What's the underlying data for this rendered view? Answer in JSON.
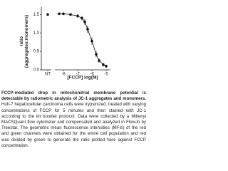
{
  "chart_data": {
    "type": "line",
    "ylabel": "ratio\n(aggregates:monomers)",
    "xlabel": "[FCCP] log(M)",
    "nt": {
      "label": "NT",
      "value": 1.5,
      "error": 0.03
    },
    "x": [
      -8.3,
      -8,
      -7.5,
      -7,
      -6.7,
      -6.5,
      -6.3,
      -6,
      -5.7,
      -5.5,
      -5.2,
      -5
    ],
    "series": [
      {
        "color": "#111111",
        "values": [
          1.52,
          1.52,
          1.5,
          1.46,
          1.4,
          1.3,
          1.1,
          0.78,
          0.42,
          0.25,
          0.14,
          0.1
        ],
        "errors": [
          0.03,
          0.03,
          0.04,
          0.05,
          0.06,
          0.08,
          0.1,
          0.1,
          0.08,
          0.06,
          0.05,
          0.04
        ]
      }
    ],
    "xlim": [
      -8.6,
      -4.7
    ],
    "xticks": [
      -8,
      -7,
      -6,
      -5
    ],
    "ylim": [
      0,
      1.7
    ],
    "yticks": [
      {
        "value": 0,
        "label": "0.0"
      },
      0.5,
      {
        "value": 1,
        "label": "1.0"
      },
      1.5
    ]
  },
  "caption": {
    "bold": "FCCP-mediated drop in mitochondrial membrane potential is detectable by ratiometric analysis of JC-1 aggregates and monomers.",
    "text": "Huh-7 hepatocellular carcinoma cells were trypsinized, treated with varying concentrations of FCCP for 5 minutes and then stained with JC-1 according to the kit booklet protocol. Data were collected by a Miltenyi MACSQuant flow cytometer and compensated and analyzed in FlowJo by Treestar. The geometric mean fluorescence intensities (MFIs) of the red and green channels were obtained for the entire cell population and red was divided by green to generate the ratio plotted here against FCCP concentration."
  }
}
